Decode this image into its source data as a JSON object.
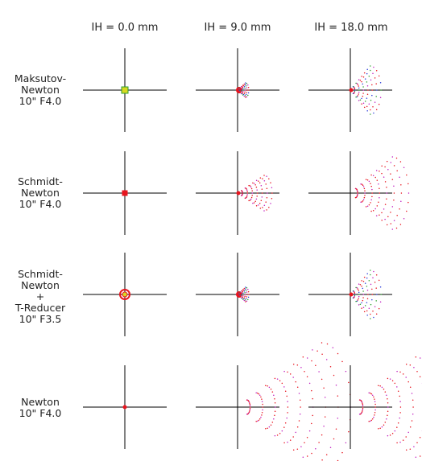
{
  "columns": [
    {
      "label": "IH = 0.0 mm"
    },
    {
      "label": "IH = 9.0 mm"
    },
    {
      "label": "IH = 18.0 mm"
    }
  ],
  "rows": [
    {
      "label": "Maksutov-\nNewton\n10\" F4.0",
      "spots": [
        "tiny",
        "small-coma",
        "medium-coma"
      ]
    },
    {
      "label": "Schmidt-\nNewton\n10\" F4.0",
      "spots": [
        "tiny",
        "medium-coma",
        "large-coma"
      ]
    },
    {
      "label": "Schmidt-\nNewton\n+\nT-Reducer\n10\" F3.5",
      "spots": [
        "ring",
        "small-coma",
        "medium-coma"
      ]
    },
    {
      "label": "Newton\n10\" F4.0",
      "spots": [
        "dot",
        "huge-coma",
        "huge-coma"
      ]
    }
  ],
  "colors": {
    "red": "#e8141e",
    "green": "#2ca02c",
    "blue": "#2a3bd8",
    "magenta": "#c01fc0",
    "yellow": "#d8d820",
    "axis": "#000000"
  }
}
